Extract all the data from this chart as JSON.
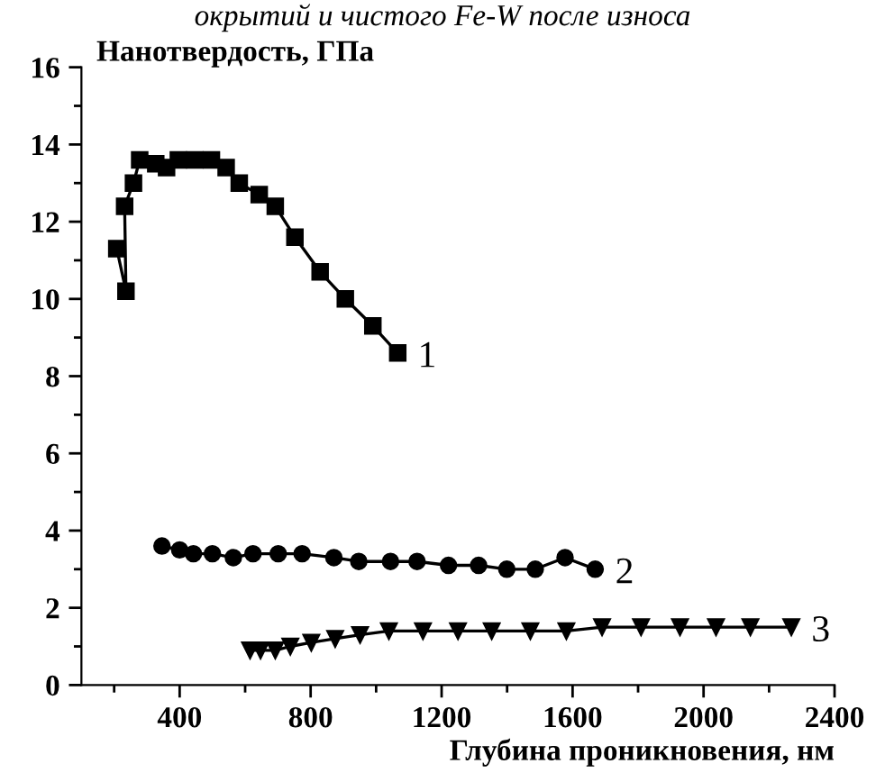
{
  "chart_data": {
    "type": "line",
    "title": "окрытий и чистого Fe-W после износа",
    "ylabel": "Нанотвердость, ГПа",
    "xlabel": "Глубина проникновения, нм",
    "xlim": [
      100,
      2400
    ],
    "xticks": [
      400,
      800,
      1200,
      1600,
      2000,
      2400
    ],
    "ylim": [
      0,
      16
    ],
    "yticks": [
      0,
      2,
      4,
      6,
      8,
      10,
      12,
      14,
      16
    ],
    "grid": false,
    "legend": false,
    "line_style": "solid",
    "series": [
      {
        "name": "1",
        "color": "#000000",
        "marker": "square",
        "x": [
          208,
          236,
          232,
          259,
          278,
          327,
          360,
          396,
          446,
          497,
          542,
          582,
          643,
          692,
          752,
          829,
          906,
          990,
          1066
        ],
        "values": [
          11.3,
          10.2,
          12.4,
          13.0,
          13.6,
          13.5,
          13.4,
          13.6,
          13.6,
          13.6,
          13.4,
          13.0,
          12.7,
          12.4,
          11.6,
          10.7,
          10.0,
          9.3,
          8.6
        ]
      },
      {
        "name": "2",
        "color": "#000000",
        "marker": "circle",
        "x": [
          346,
          400,
          442,
          500,
          564,
          624,
          701,
          774,
          871,
          947,
          1044,
          1125,
          1221,
          1313,
          1399,
          1486,
          1577,
          1669
        ],
        "values": [
          3.6,
          3.5,
          3.4,
          3.4,
          3.3,
          3.4,
          3.4,
          3.4,
          3.3,
          3.2,
          3.2,
          3.2,
          3.1,
          3.1,
          3.0,
          3.0,
          3.3,
          3.0
        ]
      },
      {
        "name": "3",
        "color": "#000000",
        "marker": "triangle",
        "x": [
          615,
          647,
          692,
          738,
          802,
          875,
          951,
          1039,
          1143,
          1250,
          1353,
          1471,
          1581,
          1690,
          1809,
          1928,
          2038,
          2143,
          2268
        ],
        "values": [
          0.9,
          0.9,
          0.9,
          1.0,
          1.1,
          1.2,
          1.3,
          1.4,
          1.4,
          1.4,
          1.4,
          1.4,
          1.4,
          1.5,
          1.5,
          1.5,
          1.5,
          1.5,
          1.5
        ]
      }
    ]
  }
}
